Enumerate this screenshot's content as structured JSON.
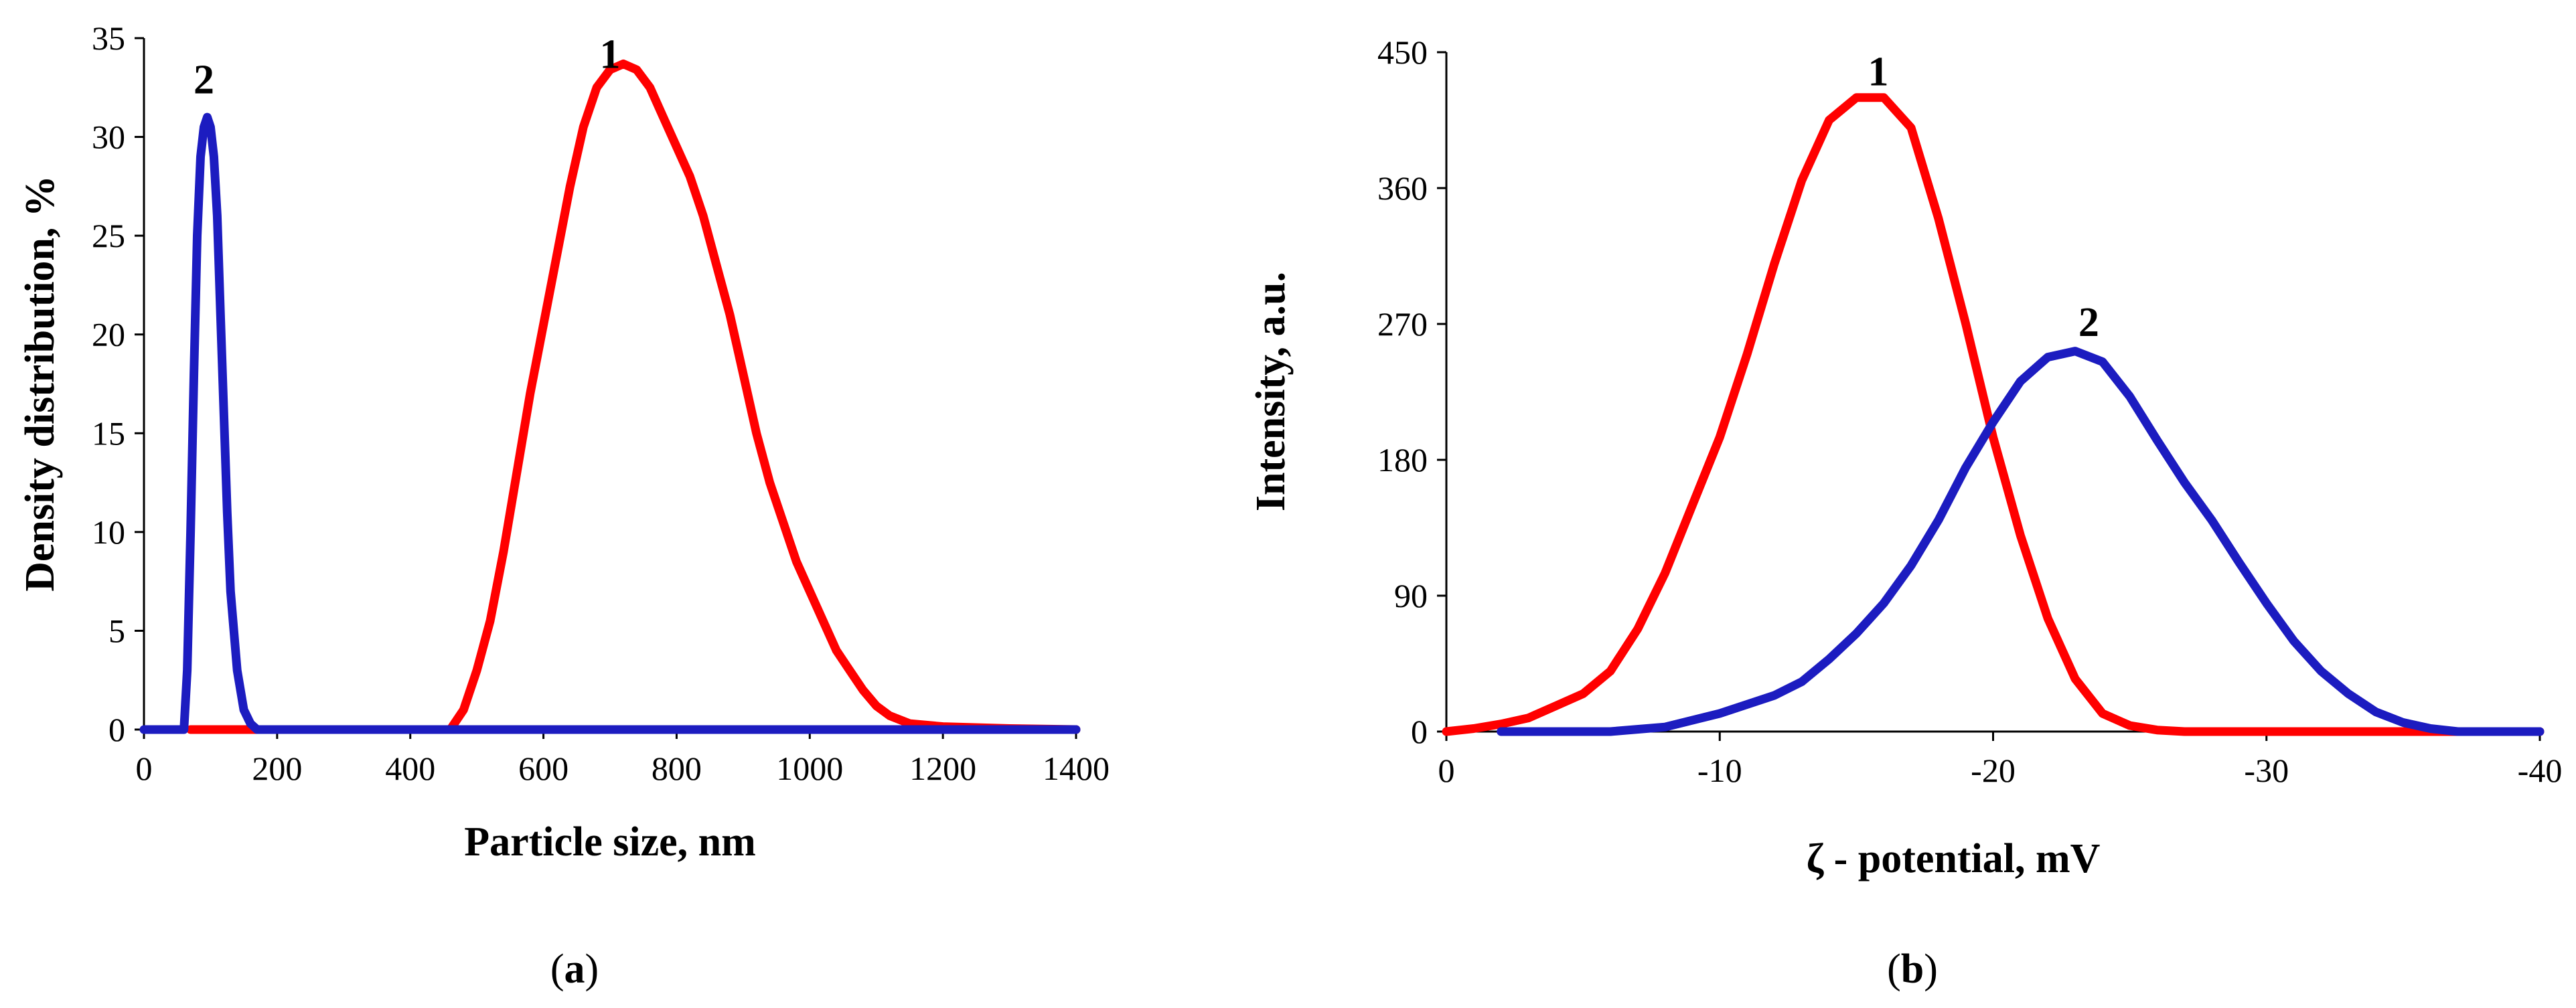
{
  "chart_data": [
    {
      "panel": "a",
      "type": "line",
      "caption_open": "(",
      "caption_letter": "a",
      "caption_close": ")",
      "xlabel": "Particle size, nm",
      "ylabel": "Density distribution, %",
      "xlim": [
        0,
        1400
      ],
      "ylim": [
        0,
        35
      ],
      "xticks": [
        0,
        200,
        400,
        600,
        800,
        1000,
        1200,
        1400
      ],
      "yticks": [
        0,
        5,
        10,
        15,
        20,
        25,
        30,
        35
      ],
      "grid": false,
      "series": [
        {
          "name": "1",
          "color": "#ff0000",
          "label_at": [
            700,
            33.5
          ],
          "points": [
            [
              70,
              0
            ],
            [
              460,
              0
            ],
            [
              480,
              1
            ],
            [
              500,
              3
            ],
            [
              520,
              5.5
            ],
            [
              540,
              9
            ],
            [
              560,
              13
            ],
            [
              580,
              17
            ],
            [
              600,
              20.5
            ],
            [
              620,
              24
            ],
            [
              640,
              27.5
            ],
            [
              660,
              30.5
            ],
            [
              680,
              32.5
            ],
            [
              700,
              33.4
            ],
            [
              720,
              33.7
            ],
            [
              740,
              33.4
            ],
            [
              760,
              32.5
            ],
            [
              780,
              31
            ],
            [
              800,
              29.5
            ],
            [
              820,
              28
            ],
            [
              840,
              26
            ],
            [
              860,
              23.5
            ],
            [
              880,
              21
            ],
            [
              900,
              18
            ],
            [
              920,
              15
            ],
            [
              940,
              12.5
            ],
            [
              960,
              10.5
            ],
            [
              980,
              8.5
            ],
            [
              1000,
              7
            ],
            [
              1020,
              5.5
            ],
            [
              1040,
              4
            ],
            [
              1060,
              3
            ],
            [
              1080,
              2
            ],
            [
              1100,
              1.2
            ],
            [
              1120,
              0.7
            ],
            [
              1150,
              0.3
            ],
            [
              1200,
              0.15
            ],
            [
              1300,
              0.05
            ],
            [
              1400,
              0
            ]
          ]
        },
        {
          "name": "2",
          "color": "#1c1cc0",
          "label_at": [
            90,
            32.2
          ],
          "points": [
            [
              0,
              0
            ],
            [
              60,
              0
            ],
            [
              65,
              3
            ],
            [
              70,
              10
            ],
            [
              75,
              18
            ],
            [
              80,
              25
            ],
            [
              85,
              29
            ],
            [
              90,
              30.5
            ],
            [
              95,
              31
            ],
            [
              100,
              30.5
            ],
            [
              105,
              29
            ],
            [
              110,
              26
            ],
            [
              115,
              21
            ],
            [
              120,
              16
            ],
            [
              125,
              11
            ],
            [
              130,
              7
            ],
            [
              140,
              3
            ],
            [
              150,
              1
            ],
            [
              160,
              0.3
            ],
            [
              170,
              0
            ],
            [
              1400,
              0
            ]
          ]
        }
      ]
    },
    {
      "panel": "b",
      "type": "line",
      "caption_open": "(",
      "caption_letter": "b",
      "caption_close": ")",
      "xlabel": "ζ - potential, mV",
      "ylabel": "Intensity, a.u.",
      "xlim": [
        0,
        -40
      ],
      "ylim": [
        0,
        450
      ],
      "xticks": [
        0,
        -10,
        -20,
        -30,
        -40
      ],
      "yticks": [
        0,
        90,
        180,
        270,
        360,
        450
      ],
      "grid": false,
      "series": [
        {
          "name": "1",
          "color": "#ff0000",
          "label_at": [
            -15.8,
            428
          ],
          "points": [
            [
              0,
              0
            ],
            [
              -1,
              2
            ],
            [
              -2,
              5
            ],
            [
              -3,
              9
            ],
            [
              -4,
              17
            ],
            [
              -5,
              25
            ],
            [
              -6,
              40
            ],
            [
              -7,
              68
            ],
            [
              -8,
              105
            ],
            [
              -9,
              150
            ],
            [
              -10,
              195
            ],
            [
              -11,
              250
            ],
            [
              -12,
              310
            ],
            [
              -13,
              365
            ],
            [
              -14,
              405
            ],
            [
              -15,
              420
            ],
            [
              -16,
              420
            ],
            [
              -17,
              400
            ],
            [
              -18,
              340
            ],
            [
              -19,
              270
            ],
            [
              -20,
              195
            ],
            [
              -21,
              130
            ],
            [
              -22,
              75
            ],
            [
              -23,
              35
            ],
            [
              -24,
              12
            ],
            [
              -25,
              4
            ],
            [
              -26,
              1
            ],
            [
              -27,
              0
            ],
            [
              -30,
              0
            ],
            [
              -35,
              0
            ],
            [
              -40,
              0
            ]
          ]
        },
        {
          "name": "2",
          "color": "#1c1cc0",
          "label_at": [
            -23.5,
            262
          ],
          "points": [
            [
              -2,
              0
            ],
            [
              -4,
              0
            ],
            [
              -6,
              0
            ],
            [
              -8,
              3
            ],
            [
              -10,
              12
            ],
            [
              -12,
              24
            ],
            [
              -13,
              33
            ],
            [
              -14,
              48
            ],
            [
              -15,
              65
            ],
            [
              -16,
              85
            ],
            [
              -17,
              110
            ],
            [
              -18,
              140
            ],
            [
              -19,
              175
            ],
            [
              -20,
              205
            ],
            [
              -21,
              232
            ],
            [
              -22,
              248
            ],
            [
              -23,
              252
            ],
            [
              -24,
              245
            ],
            [
              -25,
              222
            ],
            [
              -26,
              193
            ],
            [
              -27,
              165
            ],
            [
              -28,
              140
            ],
            [
              -29,
              112
            ],
            [
              -30,
              85
            ],
            [
              -31,
              60
            ],
            [
              -32,
              40
            ],
            [
              -33,
              25
            ],
            [
              -34,
              13
            ],
            [
              -35,
              6
            ],
            [
              -36,
              2
            ],
            [
              -37,
              0
            ],
            [
              -40,
              0
            ]
          ]
        }
      ]
    }
  ]
}
